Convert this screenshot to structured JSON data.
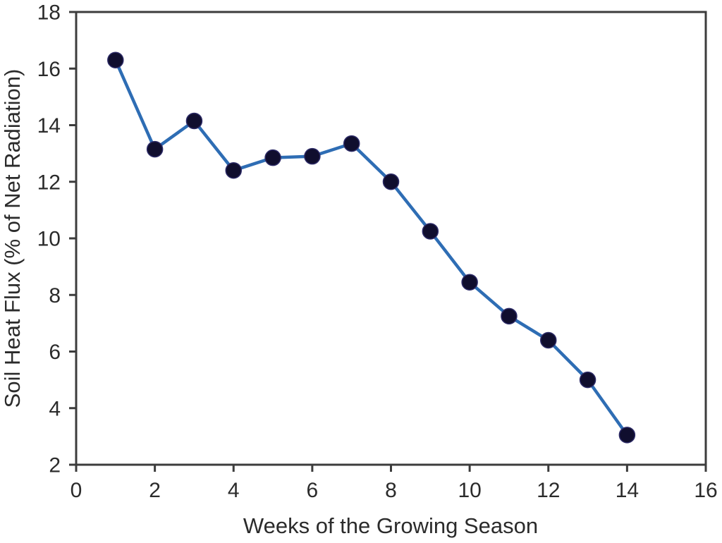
{
  "chart_data": {
    "type": "line",
    "title": "",
    "xlabel": "Weeks of the Growing Season",
    "ylabel": "Soil Heat Flux (% of Net Radiation)",
    "series_name": "Soil Heat Flux",
    "x": [
      1,
      2,
      3,
      4,
      5,
      6,
      7,
      8,
      9,
      10,
      11,
      12,
      13,
      14
    ],
    "values": [
      16.3,
      13.15,
      14.15,
      12.4,
      12.85,
      12.9,
      13.35,
      12.0,
      10.25,
      8.45,
      7.25,
      6.4,
      5.0,
      3.05
    ],
    "xlim": [
      0,
      16
    ],
    "ylim": [
      2,
      18
    ],
    "x_ticks": [
      0,
      2,
      4,
      6,
      8,
      10,
      12,
      14,
      16
    ],
    "y_ticks": [
      2,
      4,
      6,
      8,
      10,
      12,
      14,
      16,
      18
    ],
    "grid": false,
    "legend": "none",
    "marker": "circle",
    "colors": {
      "line": "#2e6db4",
      "marker": "#100e2e",
      "marker_edge": "#2c2a66",
      "axis": "#3c3c3c",
      "text": "#2b2b2b"
    }
  }
}
